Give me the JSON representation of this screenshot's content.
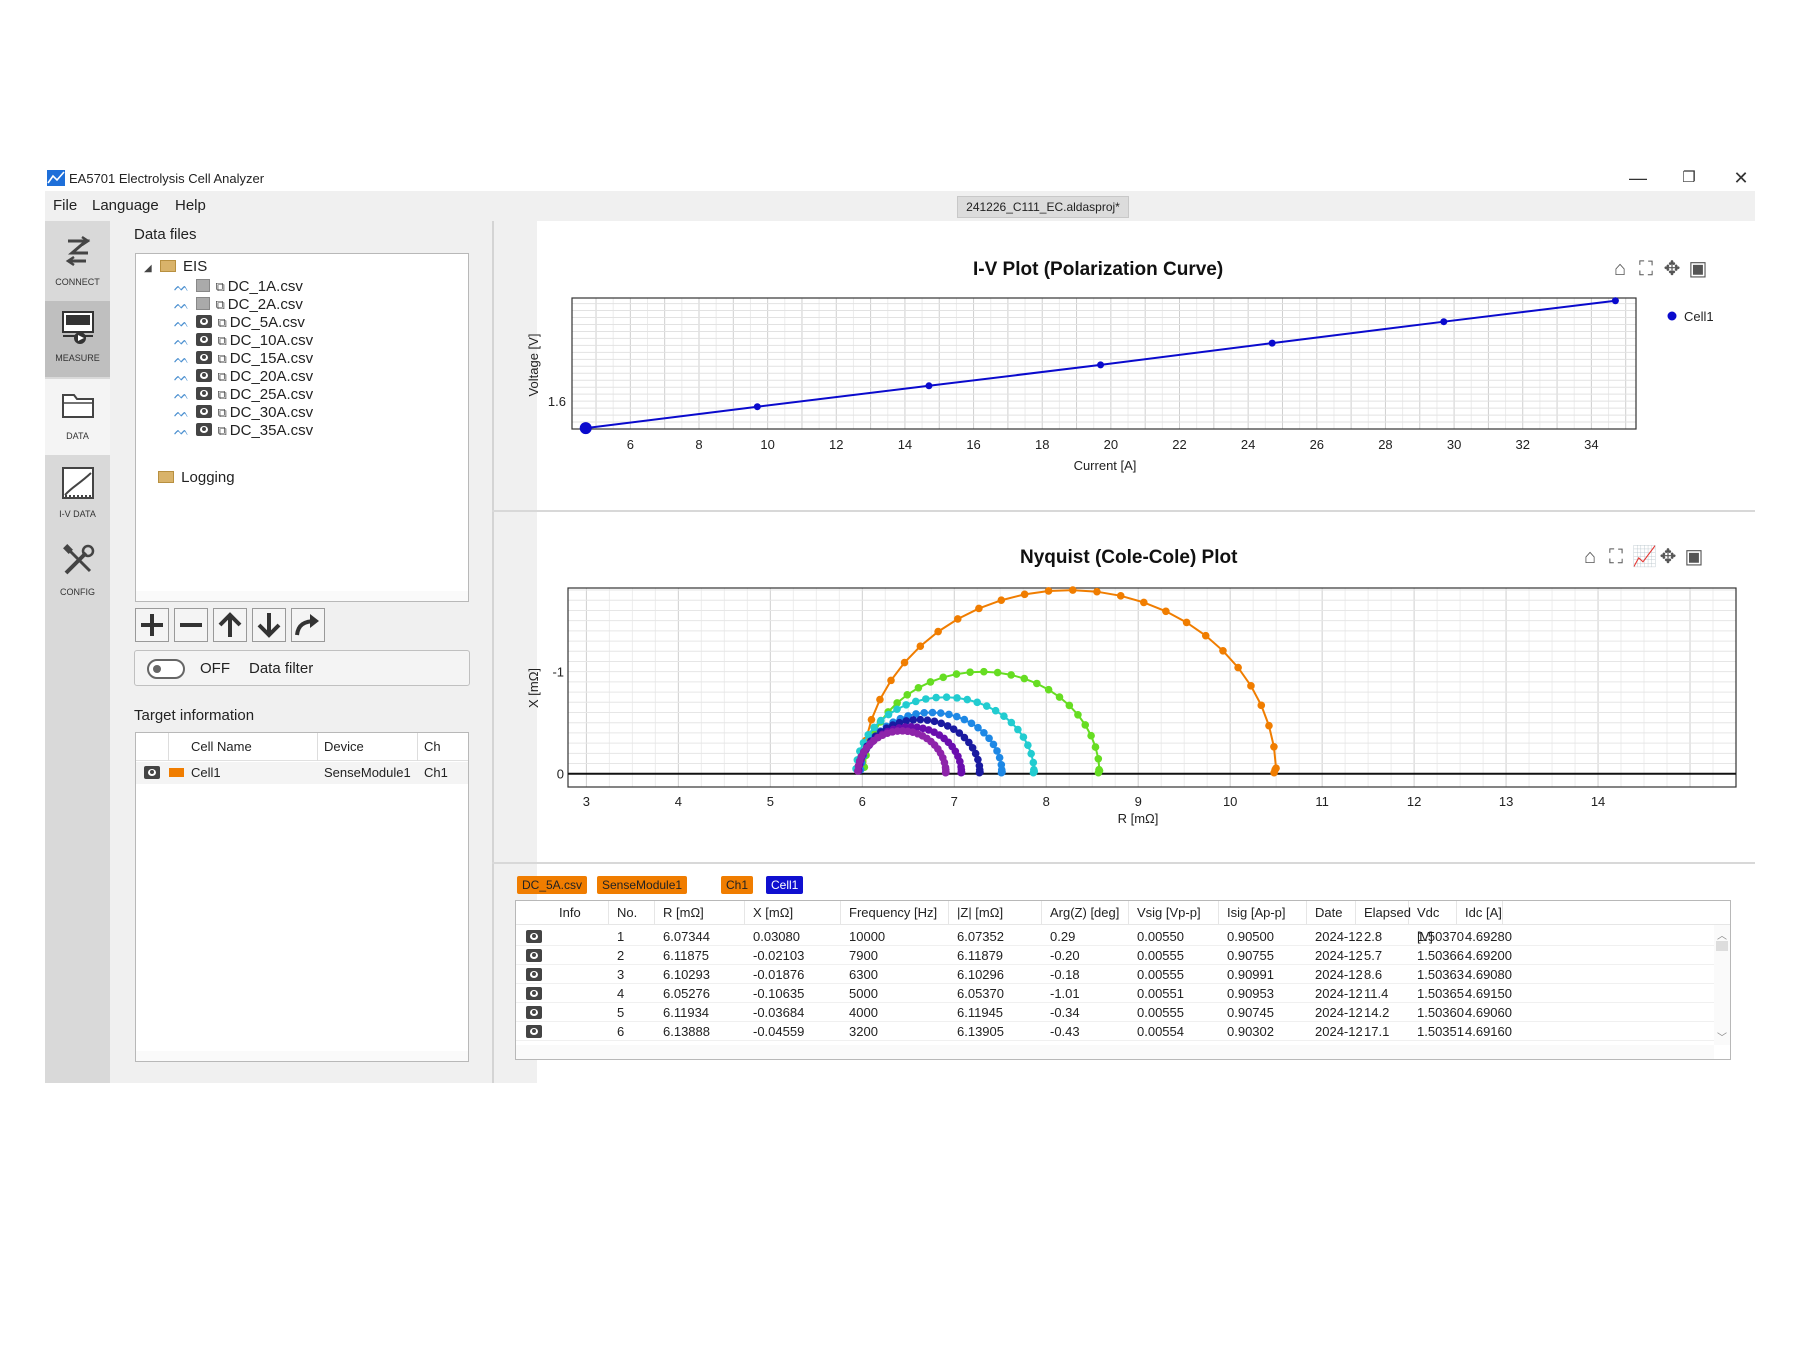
{
  "window": {
    "title": "EA5701 Electrolysis Cell Analyzer",
    "project_tab": "241226_C111_EC.aldasproj*"
  },
  "menu": [
    "File",
    "Language",
    "Help"
  ],
  "sidebar": [
    {
      "label": "CONNECT",
      "icon": "connect-icon"
    },
    {
      "label": "MEASURE",
      "icon": "measure-icon"
    },
    {
      "label": "DATA",
      "icon": "folder-icon"
    },
    {
      "label": "I-V DATA",
      "icon": "iv-data-icon"
    },
    {
      "label": "CONFIG",
      "icon": "tools-icon"
    }
  ],
  "data_files": {
    "title": "Data files",
    "root": "EIS",
    "files": [
      {
        "name": "DC_1A.csv",
        "visible": false
      },
      {
        "name": "DC_2A.csv",
        "visible": false
      },
      {
        "name": "DC_5A.csv",
        "visible": true
      },
      {
        "name": "DC_10A.csv",
        "visible": true
      },
      {
        "name": "DC_15A.csv",
        "visible": true
      },
      {
        "name": "DC_20A.csv",
        "visible": true
      },
      {
        "name": "DC_25A.csv",
        "visible": true
      },
      {
        "name": "DC_30A.csv",
        "visible": true
      },
      {
        "name": "DC_35A.csv",
        "visible": true
      }
    ],
    "logging": "Logging"
  },
  "filter": {
    "state": "OFF",
    "label": "Data filter"
  },
  "target": {
    "title": "Target information",
    "headers": [
      "Cell Name",
      "Device",
      "Ch"
    ],
    "rows": [
      {
        "cell": "Cell1",
        "device": "SenseModule1",
        "ch": "Ch1",
        "color": "#f07d00"
      }
    ]
  },
  "iv_chart": {
    "title": "I-V Plot (Polarization Curve)",
    "xlabel": "Current [A]",
    "ylabel": "Voltage [V]",
    "legend": "Cell1",
    "x_ticks": [
      "6",
      "8",
      "10",
      "12",
      "14",
      "16",
      "18",
      "20",
      "22",
      "24",
      "26",
      "28",
      "30",
      "32",
      "34"
    ],
    "y_ticks": [
      "1.6"
    ]
  },
  "nyquist_chart": {
    "title": "Nyquist (Cole-Cole) Plot",
    "xlabel": "R [mΩ]",
    "ylabel": "X [mΩ]",
    "x_ticks": [
      "3",
      "4",
      "5",
      "6",
      "7",
      "8",
      "9",
      "10",
      "11",
      "12",
      "13",
      "14"
    ],
    "y_ticks": [
      "-1",
      "0"
    ]
  },
  "chart_data": [
    {
      "type": "line",
      "title": "I-V Plot (Polarization Curve)",
      "xlabel": "Current [A]",
      "ylabel": "Voltage [V]",
      "xlim": [
        4.3,
        35.3
      ],
      "ylim": [
        1.5,
        1.97
      ],
      "grid": true,
      "legend": "top-right",
      "series": [
        {
          "name": "Cell1",
          "color": "#0a0acd",
          "x": [
            4.7,
            9.7,
            14.7,
            19.7,
            24.7,
            29.7,
            34.7
          ],
          "y": [
            1.503,
            1.58,
            1.655,
            1.73,
            1.808,
            1.885,
            1.96
          ]
        }
      ]
    },
    {
      "type": "scatter",
      "title": "Nyquist (Cole-Cole) Plot",
      "xlabel": "R [mΩ]",
      "ylabel": "X [mΩ]",
      "xlim": [
        2.8,
        15.5
      ],
      "ylim": [
        0.13,
        -1.82
      ],
      "grid": true,
      "series": [
        {
          "color": "#f07d00",
          "center": 8.25,
          "radius": 2.25,
          "height": 1.8
        },
        {
          "color": "#66dd22",
          "center": 7.3,
          "radius": 1.28,
          "height": 1.0
        },
        {
          "color": "#22ccd0",
          "center": 6.9,
          "radius": 0.97,
          "height": 0.75
        },
        {
          "color": "#1e88e5",
          "center": 6.75,
          "radius": 0.77,
          "height": 0.6
        },
        {
          "color": "#1a1aa0",
          "center": 6.62,
          "radius": 0.66,
          "height": 0.53
        },
        {
          "color": "#6a0dad",
          "center": 6.52,
          "radius": 0.56,
          "height": 0.46
        },
        {
          "color": "#8e24aa",
          "center": 6.43,
          "radius": 0.48,
          "height": 0.42
        }
      ]
    }
  ],
  "data_tags": [
    {
      "label": "DC_5A.csv",
      "color": "#f07d00"
    },
    {
      "label": "SenseModule1",
      "color": "#f07d00"
    },
    {
      "label": "Ch1",
      "color": "#f07d00"
    },
    {
      "label": "Cell1",
      "color": "#1010d0"
    }
  ],
  "data_table": {
    "headers": [
      "Info",
      "No.",
      "R [mΩ]",
      "X [mΩ]",
      "Frequency [Hz]",
      "|Z| [mΩ]",
      "Arg(Z) [deg]",
      "Vsig [Vp-p]",
      "Isig [Ap-p]",
      "Date",
      "Elapsed",
      "Vdc [V]",
      "Idc [A]"
    ],
    "rows": [
      [
        "1",
        "6.07344",
        "0.03080",
        "10000",
        "6.07352",
        "0.29",
        "0.00550",
        "0.90500",
        "2024-12",
        "2.8",
        "1.50370",
        "4.69280"
      ],
      [
        "2",
        "6.11875",
        "-0.02103",
        "7900",
        "6.11879",
        "-0.20",
        "0.00555",
        "0.90755",
        "2024-12",
        "5.7",
        "1.50366",
        "4.69200"
      ],
      [
        "3",
        "6.10293",
        "-0.01876",
        "6300",
        "6.10296",
        "-0.18",
        "0.00555",
        "0.90991",
        "2024-12",
        "8.6",
        "1.50363",
        "4.69080"
      ],
      [
        "4",
        "6.05276",
        "-0.10635",
        "5000",
        "6.05370",
        "-1.01",
        "0.00551",
        "0.90953",
        "2024-12",
        "11.4",
        "1.50365",
        "4.69150"
      ],
      [
        "5",
        "6.11934",
        "-0.03684",
        "4000",
        "6.11945",
        "-0.34",
        "0.00555",
        "0.90745",
        "2024-12",
        "14.2",
        "1.50360",
        "4.69060"
      ],
      [
        "6",
        "6.13888",
        "-0.04559",
        "3200",
        "6.13905",
        "-0.43",
        "0.00554",
        "0.90302",
        "2024-12",
        "17.1",
        "1.50351",
        "4.69160"
      ]
    ]
  }
}
